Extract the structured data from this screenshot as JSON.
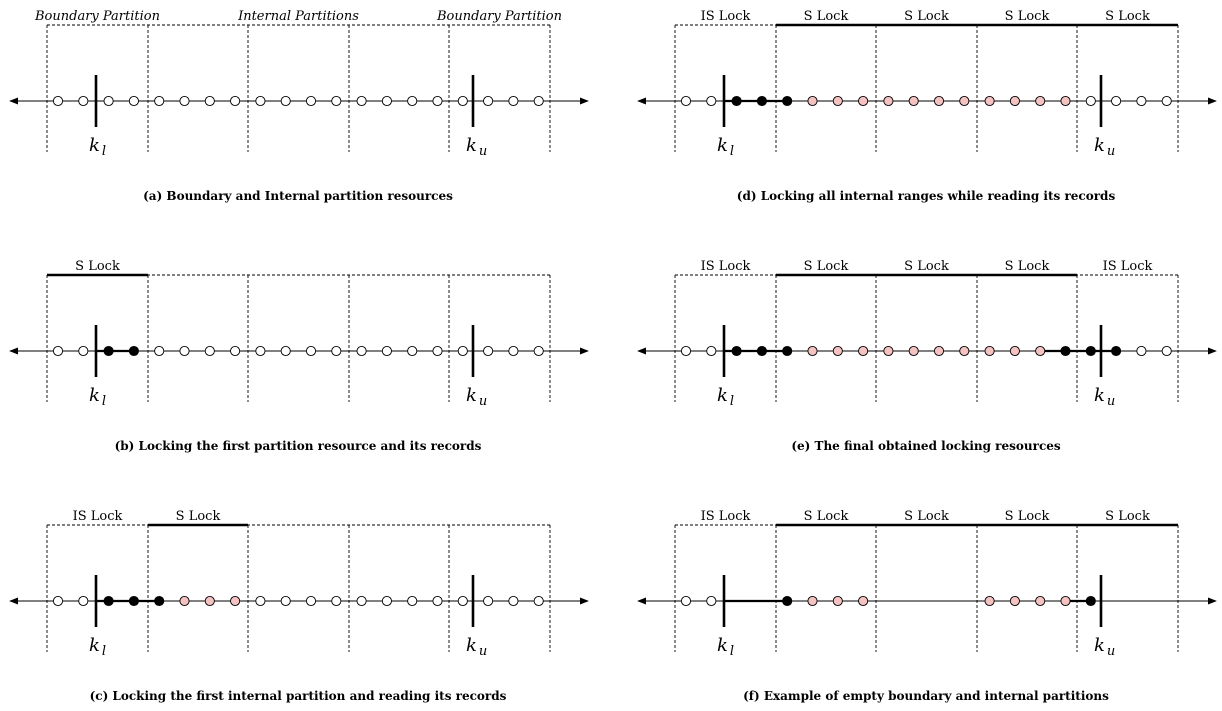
{
  "colors": {
    "ink": "#000000",
    "open_record": "#ffffff",
    "locked_record": "#000000",
    "read_record": "#f5c2c2"
  },
  "labels": {
    "k_lower_base": "k",
    "k_lower_sub": "l",
    "k_upper_base": "k",
    "k_upper_sub": "u"
  },
  "panels": [
    {
      "id": "a",
      "caption": "(a) Boundary and Internal partition resources",
      "top_labels": [
        {
          "text": "Boundary Partition",
          "italic": true,
          "span": [
            0,
            1
          ]
        },
        {
          "text": "Internal Partitions",
          "italic": true,
          "span": [
            2,
            3
          ]
        },
        {
          "text": "Boundary Partition",
          "italic": true,
          "span": [
            4,
            5
          ]
        }
      ],
      "lock_bars": [],
      "records": [
        "o",
        "o",
        "o",
        "o",
        "o",
        "o",
        "o",
        "o",
        "o",
        "o",
        "o",
        "o",
        "o",
        "o",
        "o",
        "o",
        "o",
        "o",
        "o",
        "o"
      ],
      "bold_segments": []
    },
    {
      "id": "b",
      "caption": "(b) Locking the first partition resource and its records",
      "top_labels": [
        {
          "text": "S   Lock",
          "italic": false,
          "span": [
            0,
            1
          ]
        }
      ],
      "lock_bars": [
        [
          0,
          1
        ]
      ],
      "records": [
        "o",
        "o",
        "b",
        "b",
        "o",
        "o",
        "o",
        "o",
        "o",
        "o",
        "o",
        "o",
        "o",
        "o",
        "o",
        "o",
        "o",
        "o",
        "o",
        "o"
      ],
      "bold_segments": [
        [
          1,
          3
        ]
      ]
    },
    {
      "id": "c",
      "caption": "(c) Locking the first internal partition and reading its records",
      "top_labels": [
        {
          "text": "IS  Lock",
          "italic": false,
          "span": [
            0,
            1
          ]
        },
        {
          "text": "S   Lock",
          "italic": false,
          "span": [
            1,
            2
          ]
        }
      ],
      "lock_bars": [
        [
          1,
          2
        ]
      ],
      "records": [
        "o",
        "o",
        "b",
        "b",
        "b",
        "p",
        "p",
        "p",
        "o",
        "o",
        "o",
        "o",
        "o",
        "o",
        "o",
        "o",
        "o",
        "o",
        "o",
        "o"
      ],
      "bold_segments": [
        [
          1,
          4
        ]
      ]
    },
    {
      "id": "d",
      "caption": "(d) Locking all internal ranges while reading its records",
      "top_labels": [
        {
          "text": "IS  Lock",
          "italic": false,
          "span": [
            0,
            1
          ]
        },
        {
          "text": "S   Lock",
          "italic": false,
          "span": [
            1,
            2
          ]
        },
        {
          "text": "S   Lock",
          "italic": false,
          "span": [
            2,
            3
          ]
        },
        {
          "text": "S   Lock",
          "italic": false,
          "span": [
            3,
            4
          ]
        },
        {
          "text": "S   Lock",
          "italic": false,
          "span": [
            4,
            5
          ]
        }
      ],
      "lock_bars": [
        [
          1,
          5
        ]
      ],
      "records": [
        "o",
        "o",
        "b",
        "b",
        "b",
        "p",
        "p",
        "p",
        "p",
        "p",
        "p",
        "p",
        "p",
        "p",
        "p",
        "p",
        "o",
        "o",
        "o",
        "o"
      ],
      "bold_segments": [
        [
          1,
          4
        ]
      ]
    },
    {
      "id": "e",
      "caption": "(e) The final obtained locking resources",
      "top_labels": [
        {
          "text": "IS  Lock",
          "italic": false,
          "span": [
            0,
            1
          ]
        },
        {
          "text": "S   Lock",
          "italic": false,
          "span": [
            1,
            2
          ]
        },
        {
          "text": "S   Lock",
          "italic": false,
          "span": [
            2,
            3
          ]
        },
        {
          "text": "S   Lock",
          "italic": false,
          "span": [
            3,
            4
          ]
        },
        {
          "text": "IS  Lock",
          "italic": false,
          "span": [
            4,
            5
          ]
        }
      ],
      "lock_bars": [
        [
          1,
          4
        ]
      ],
      "records": [
        "o",
        "o",
        "b",
        "b",
        "b",
        "p",
        "p",
        "p",
        "p",
        "p",
        "p",
        "p",
        "p",
        "p",
        "p",
        "b",
        "b",
        "b",
        "o",
        "o"
      ],
      "bold_segments": [
        [
          1,
          4
        ],
        [
          14,
          17
        ]
      ]
    },
    {
      "id": "f",
      "caption": "(f) Example of empty boundary and internal partitions",
      "top_labels": [
        {
          "text": "IS  Lock",
          "italic": false,
          "span": [
            0,
            1
          ]
        },
        {
          "text": "S   Lock",
          "italic": false,
          "span": [
            1,
            2
          ]
        },
        {
          "text": "S   Lock",
          "italic": false,
          "span": [
            2,
            3
          ]
        },
        {
          "text": "S   Lock",
          "italic": false,
          "span": [
            3,
            4
          ]
        },
        {
          "text": "S   Lock",
          "italic": false,
          "span": [
            4,
            5
          ]
        }
      ],
      "lock_bars": [
        [
          1,
          5
        ]
      ],
      "records": [
        "o",
        "o",
        "-",
        "-",
        "b",
        "p",
        "p",
        "p",
        "-",
        "-",
        "-",
        "-",
        "p",
        "p",
        "p",
        "p",
        "b",
        "-",
        "-",
        "-"
      ],
      "bold_segments": [
        [
          1,
          4
        ],
        [
          15,
          16
        ]
      ]
    }
  ]
}
